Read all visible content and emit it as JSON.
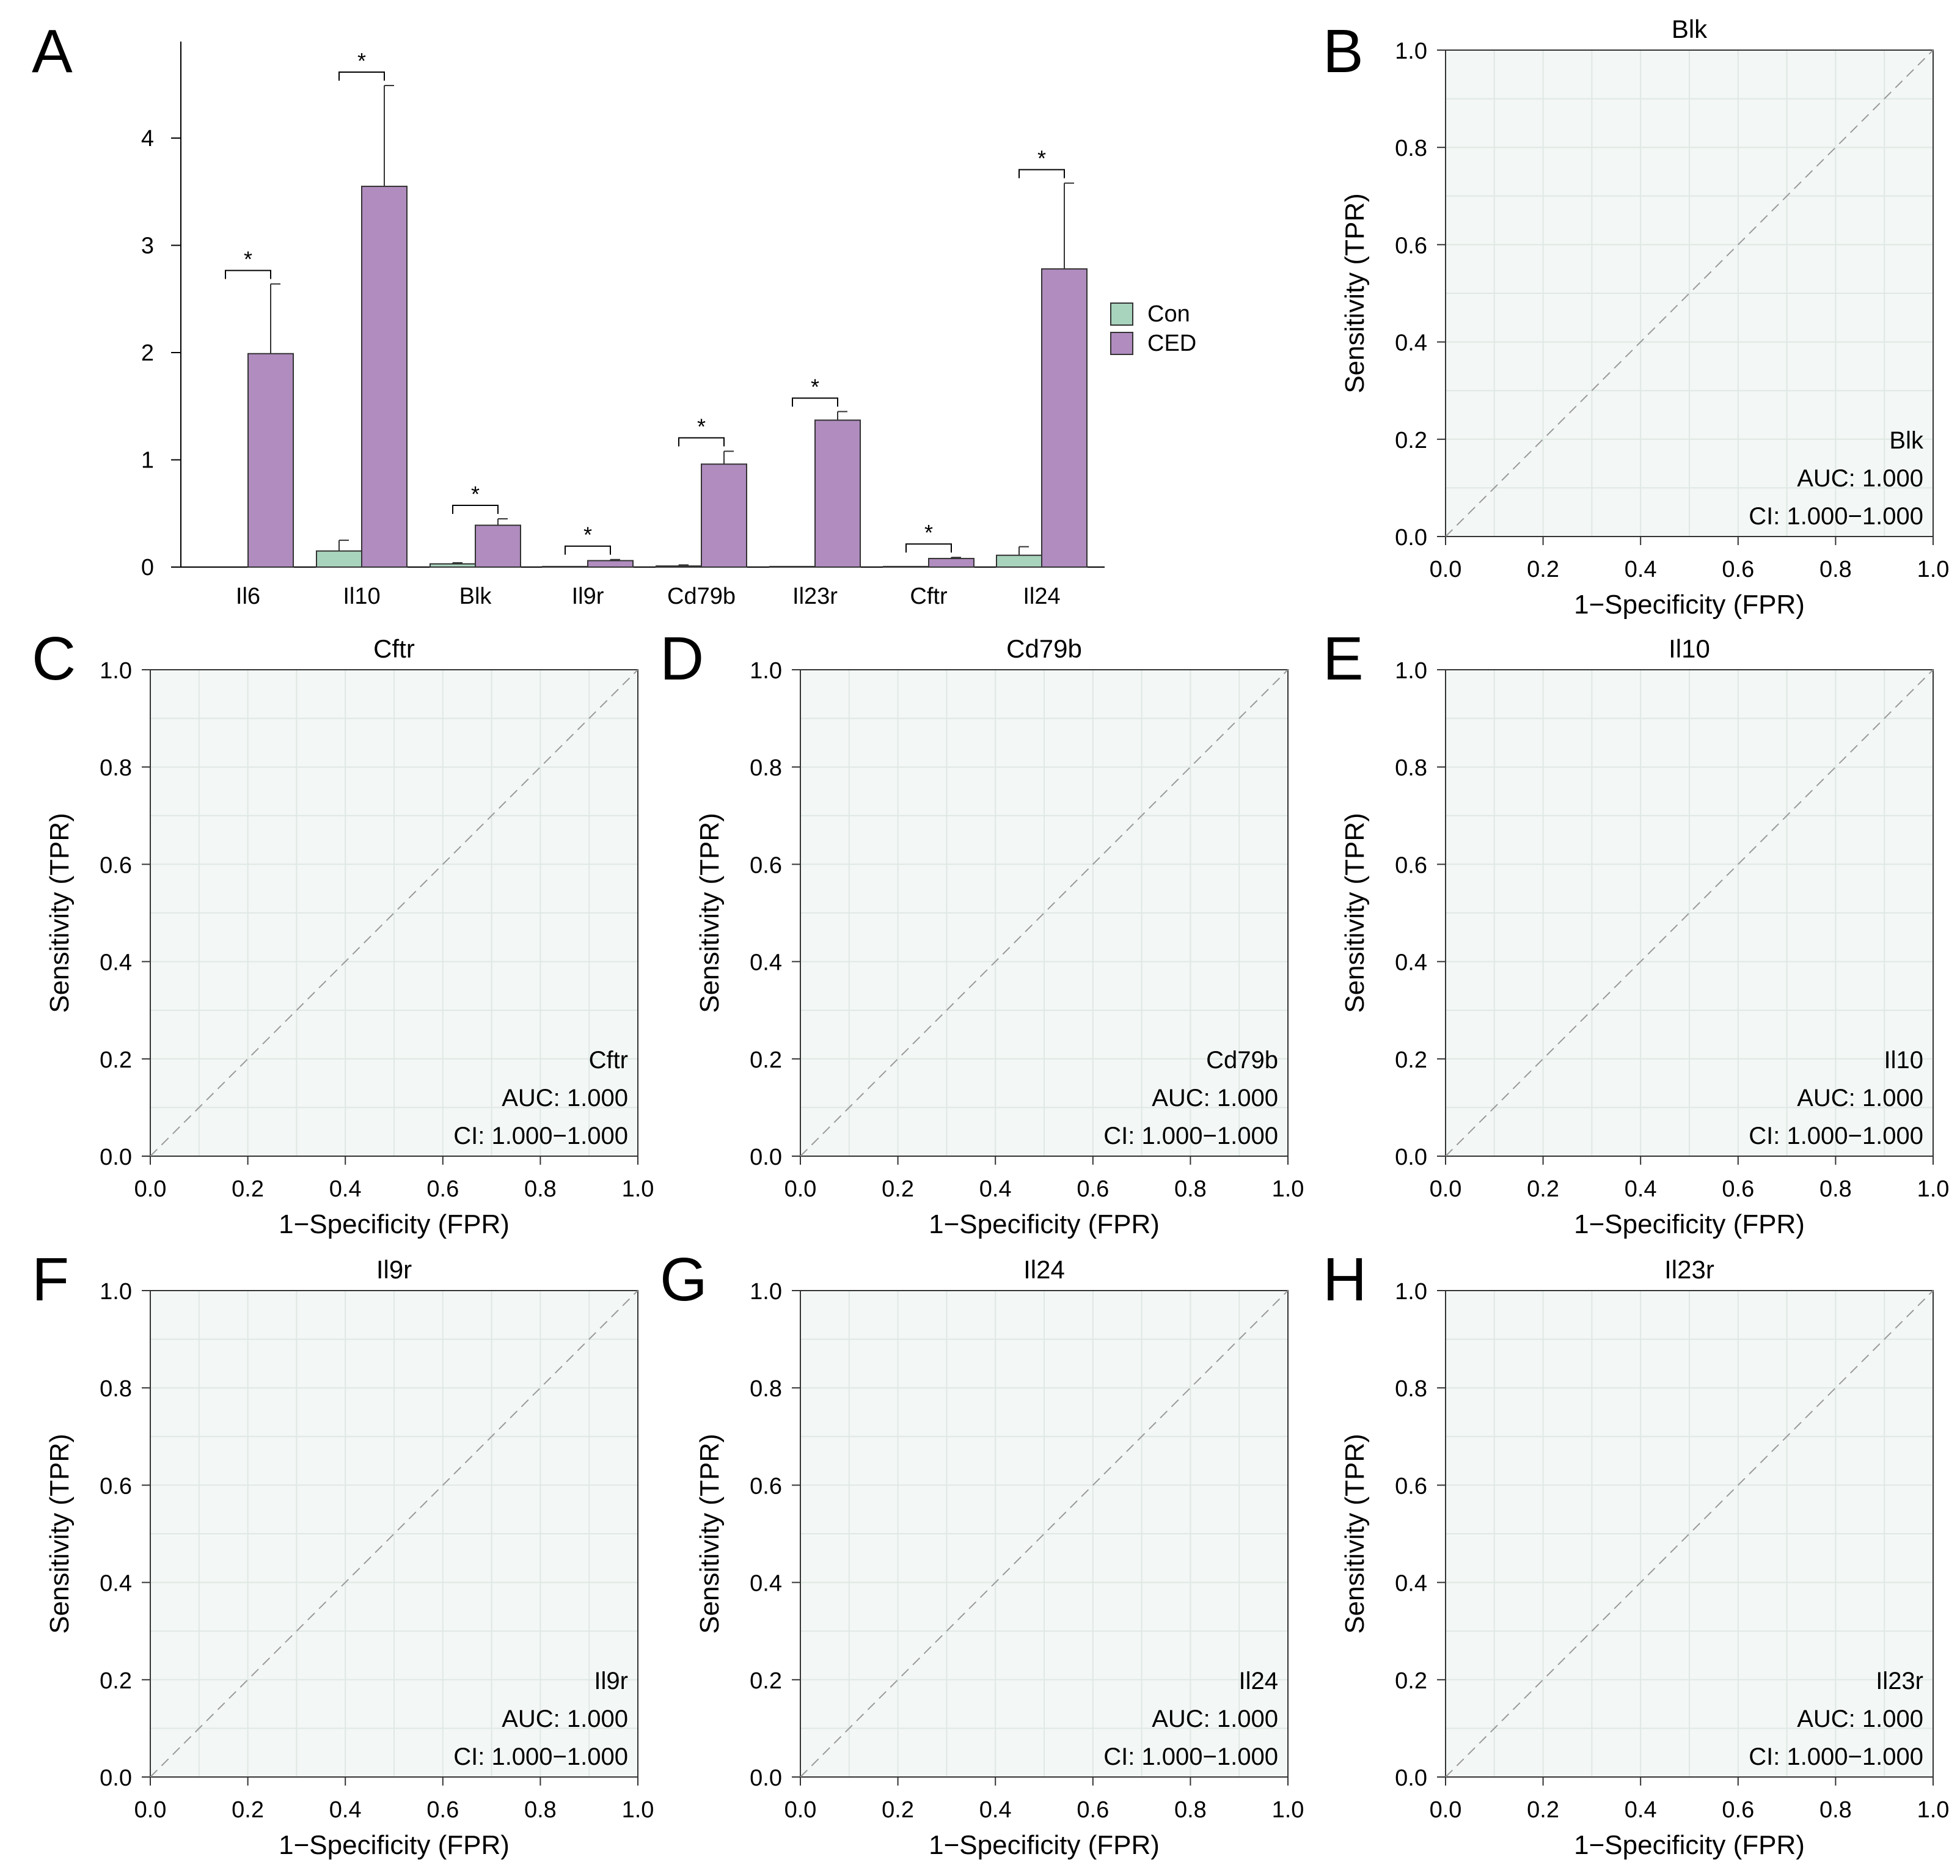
{
  "colors": {
    "con": "#a8d3bd",
    "ced": "#b08cbf",
    "roc_panel_bg": "#f3f7f5",
    "roc_grid": "#dfe8e4",
    "diagonal": "#9a9a9a"
  },
  "chart_data": [
    {
      "panel_letter": "A",
      "type": "bar",
      "title": "",
      "xlabel": "",
      "ylabel": "",
      "ylim": [
        0,
        4.9
      ],
      "yticks": [
        0,
        1,
        2,
        3,
        4
      ],
      "ytick_labels": [
        "0",
        "1",
        "2",
        "3",
        "4"
      ],
      "categories": [
        "Il6",
        "Il10",
        "Blk",
        "Il9r",
        "Cd79b",
        "Il23r",
        "Cftr",
        "Il24"
      ],
      "series": [
        {
          "name": "Con",
          "values": [
            0.0,
            0.15,
            0.03,
            0.005,
            0.01,
            0.005,
            0.005,
            0.11
          ],
          "errors": [
            0.0,
            0.1,
            0.01,
            0.0,
            0.01,
            0.0,
            0.0,
            0.08
          ]
        },
        {
          "name": "CED",
          "values": [
            1.99,
            3.55,
            0.39,
            0.06,
            0.96,
            1.37,
            0.08,
            2.78
          ],
          "errors": [
            0.65,
            0.94,
            0.06,
            0.01,
            0.12,
            0.08,
            0.01,
            0.8
          ]
        }
      ],
      "significance": [
        "*",
        "*",
        "*",
        "*",
        "*",
        "*",
        "*",
        "*"
      ],
      "legend": [
        "Con",
        "CED"
      ],
      "legend_position": "right"
    },
    {
      "panel_letter": "B",
      "type": "line",
      "title": "Blk",
      "xlabel": "1−Specificity (FPR)",
      "ylabel": "Sensitivity (TPR)",
      "xlim": [
        0,
        1
      ],
      "ylim": [
        0,
        1
      ],
      "ticks": [
        "0.0",
        "0.2",
        "0.4",
        "0.6",
        "0.8",
        "1.0"
      ],
      "gene": "Blk",
      "auc": "AUC: 1.000",
      "ci": "CI: 1.000−1.000",
      "diagonal": [
        [
          0,
          0
        ],
        [
          1,
          1
        ]
      ],
      "grid": true
    },
    {
      "panel_letter": "C",
      "type": "line",
      "title": "Cftr",
      "xlabel": "1−Specificity (FPR)",
      "ylabel": "Sensitivity (TPR)",
      "xlim": [
        0,
        1
      ],
      "ylim": [
        0,
        1
      ],
      "ticks": [
        "0.0",
        "0.2",
        "0.4",
        "0.6",
        "0.8",
        "1.0"
      ],
      "gene": "Cftr",
      "auc": "AUC: 1.000",
      "ci": "CI: 1.000−1.000",
      "diagonal": [
        [
          0,
          0
        ],
        [
          1,
          1
        ]
      ],
      "grid": true
    },
    {
      "panel_letter": "D",
      "type": "line",
      "title": "Cd79b",
      "xlabel": "1−Specificity (FPR)",
      "ylabel": "Sensitivity (TPR)",
      "xlim": [
        0,
        1
      ],
      "ylim": [
        0,
        1
      ],
      "ticks": [
        "0.0",
        "0.2",
        "0.4",
        "0.6",
        "0.8",
        "1.0"
      ],
      "gene": "Cd79b",
      "auc": "AUC: 1.000",
      "ci": "CI: 1.000−1.000",
      "diagonal": [
        [
          0,
          0
        ],
        [
          1,
          1
        ]
      ],
      "grid": true
    },
    {
      "panel_letter": "E",
      "type": "line",
      "title": "Il10",
      "xlabel": "1−Specificity (FPR)",
      "ylabel": "Sensitivity (TPR)",
      "xlim": [
        0,
        1
      ],
      "ylim": [
        0,
        1
      ],
      "ticks": [
        "0.0",
        "0.2",
        "0.4",
        "0.6",
        "0.8",
        "1.0"
      ],
      "gene": "Il10",
      "auc": "AUC: 1.000",
      "ci": "CI: 1.000−1.000",
      "diagonal": [
        [
          0,
          0
        ],
        [
          1,
          1
        ]
      ],
      "grid": true
    },
    {
      "panel_letter": "F",
      "type": "line",
      "title": "Il9r",
      "xlabel": "1−Specificity (FPR)",
      "ylabel": "Sensitivity (TPR)",
      "xlim": [
        0,
        1
      ],
      "ylim": [
        0,
        1
      ],
      "ticks": [
        "0.0",
        "0.2",
        "0.4",
        "0.6",
        "0.8",
        "1.0"
      ],
      "gene": "Il9r",
      "auc": "AUC: 1.000",
      "ci": "CI: 1.000−1.000",
      "diagonal": [
        [
          0,
          0
        ],
        [
          1,
          1
        ]
      ],
      "grid": true
    },
    {
      "panel_letter": "G",
      "type": "line",
      "title": "Il24",
      "xlabel": "1−Specificity (FPR)",
      "ylabel": "Sensitivity (TPR)",
      "xlim": [
        0,
        1
      ],
      "ylim": [
        0,
        1
      ],
      "ticks": [
        "0.0",
        "0.2",
        "0.4",
        "0.6",
        "0.8",
        "1.0"
      ],
      "gene": "Il24",
      "auc": "AUC: 1.000",
      "ci": "CI: 1.000−1.000",
      "diagonal": [
        [
          0,
          0
        ],
        [
          1,
          1
        ]
      ],
      "grid": true
    },
    {
      "panel_letter": "H",
      "type": "line",
      "title": "Il23r",
      "xlabel": "1−Specificity (FPR)",
      "ylabel": "Sensitivity (TPR)",
      "xlim": [
        0,
        1
      ],
      "ylim": [
        0,
        1
      ],
      "ticks": [
        "0.0",
        "0.2",
        "0.4",
        "0.6",
        "0.8",
        "1.0"
      ],
      "gene": "Il23r",
      "auc": "AUC: 1.000",
      "ci": "CI: 1.000−1.000",
      "diagonal": [
        [
          0,
          0
        ],
        [
          1,
          1
        ]
      ],
      "grid": true
    }
  ]
}
